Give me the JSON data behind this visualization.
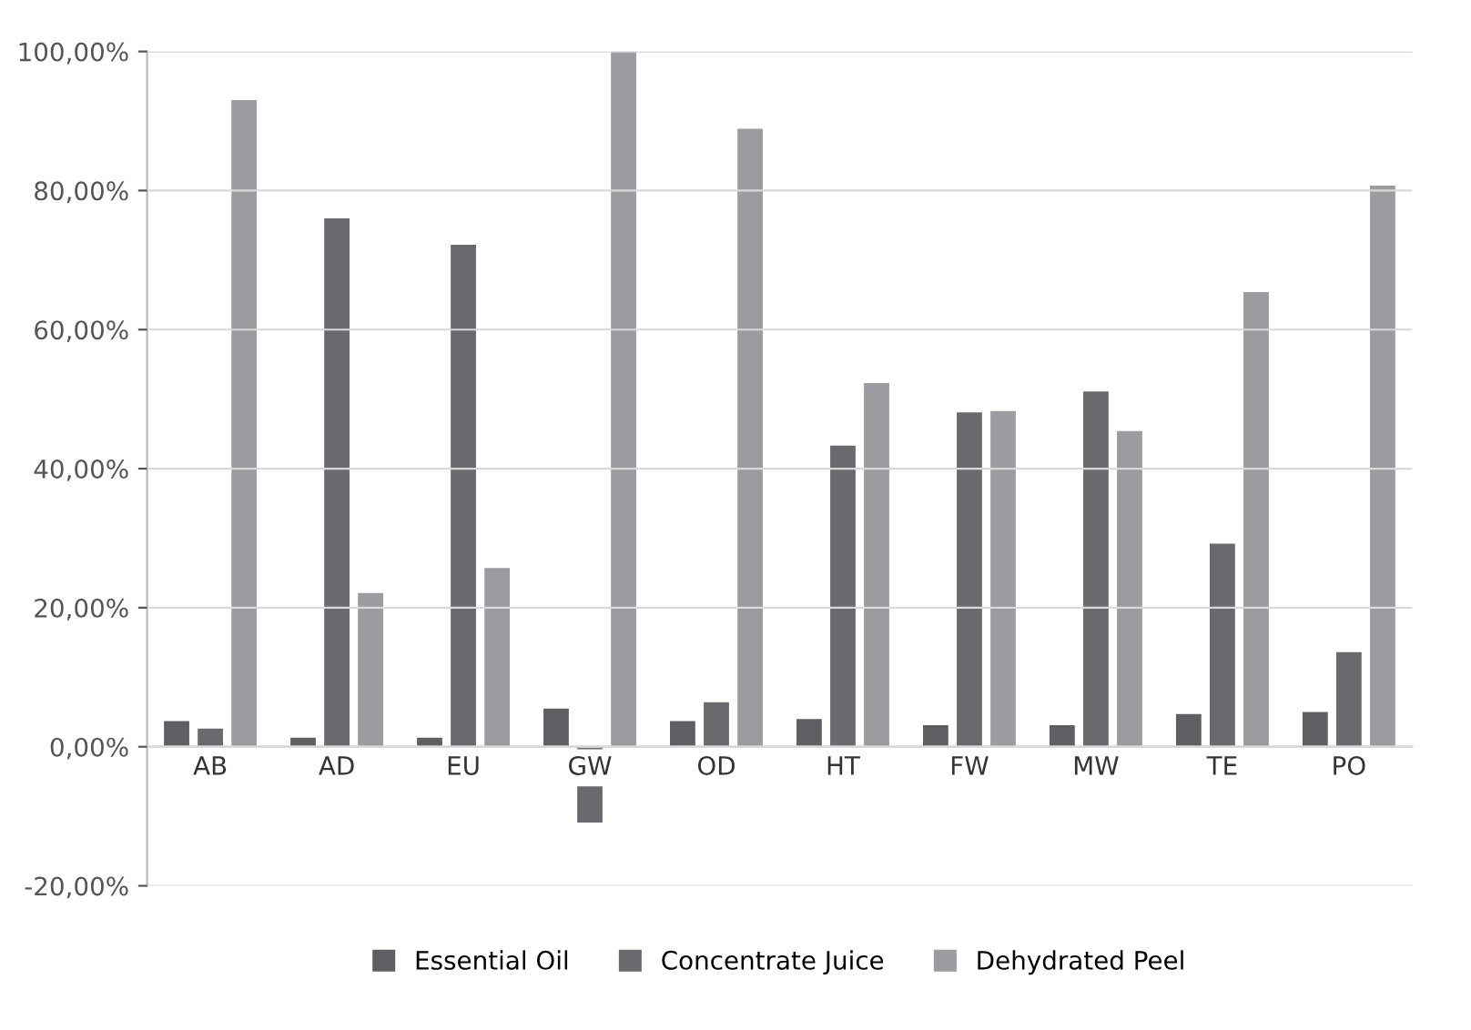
{
  "chart_data": {
    "type": "bar",
    "categories": [
      "AB",
      "AD",
      "EU",
      "GW",
      "OD",
      "HT",
      "FW",
      "MW",
      "TE",
      "PO"
    ],
    "series": [
      {
        "name": "Essential Oil",
        "color": "#5f5f63",
        "values": [
          3.7,
          1.3,
          1.3,
          5.5,
          3.7,
          4.0,
          3.1,
          3.1,
          4.7,
          5.0
        ]
      },
      {
        "name": "Concentrate Juice",
        "color": "#6a6a6e",
        "values": [
          2.6,
          76.0,
          72.2,
          -10.9,
          6.4,
          43.3,
          48.1,
          51.1,
          29.2,
          13.6
        ]
      },
      {
        "name": "Dehydrated Peel",
        "color": "#9c9ca0",
        "values": [
          93.0,
          22.1,
          25.7,
          100,
          88.9,
          52.3,
          48.3,
          45.4,
          65.4,
          80.7
        ]
      }
    ],
    "ylim": [
      -20,
      100
    ],
    "yticks": [
      {
        "value": -20,
        "label": "-20,00%"
      },
      {
        "value": 0,
        "label": "0,00%"
      },
      {
        "value": 20,
        "label": "20,00%"
      },
      {
        "value": 40,
        "label": "40,00%"
      },
      {
        "value": 60,
        "label": "60,00%"
      },
      {
        "value": 80,
        "label": "80,00%"
      },
      {
        "value": 100,
        "label": "100,00%"
      }
    ],
    "grid": "y",
    "legend": "bottom"
  }
}
